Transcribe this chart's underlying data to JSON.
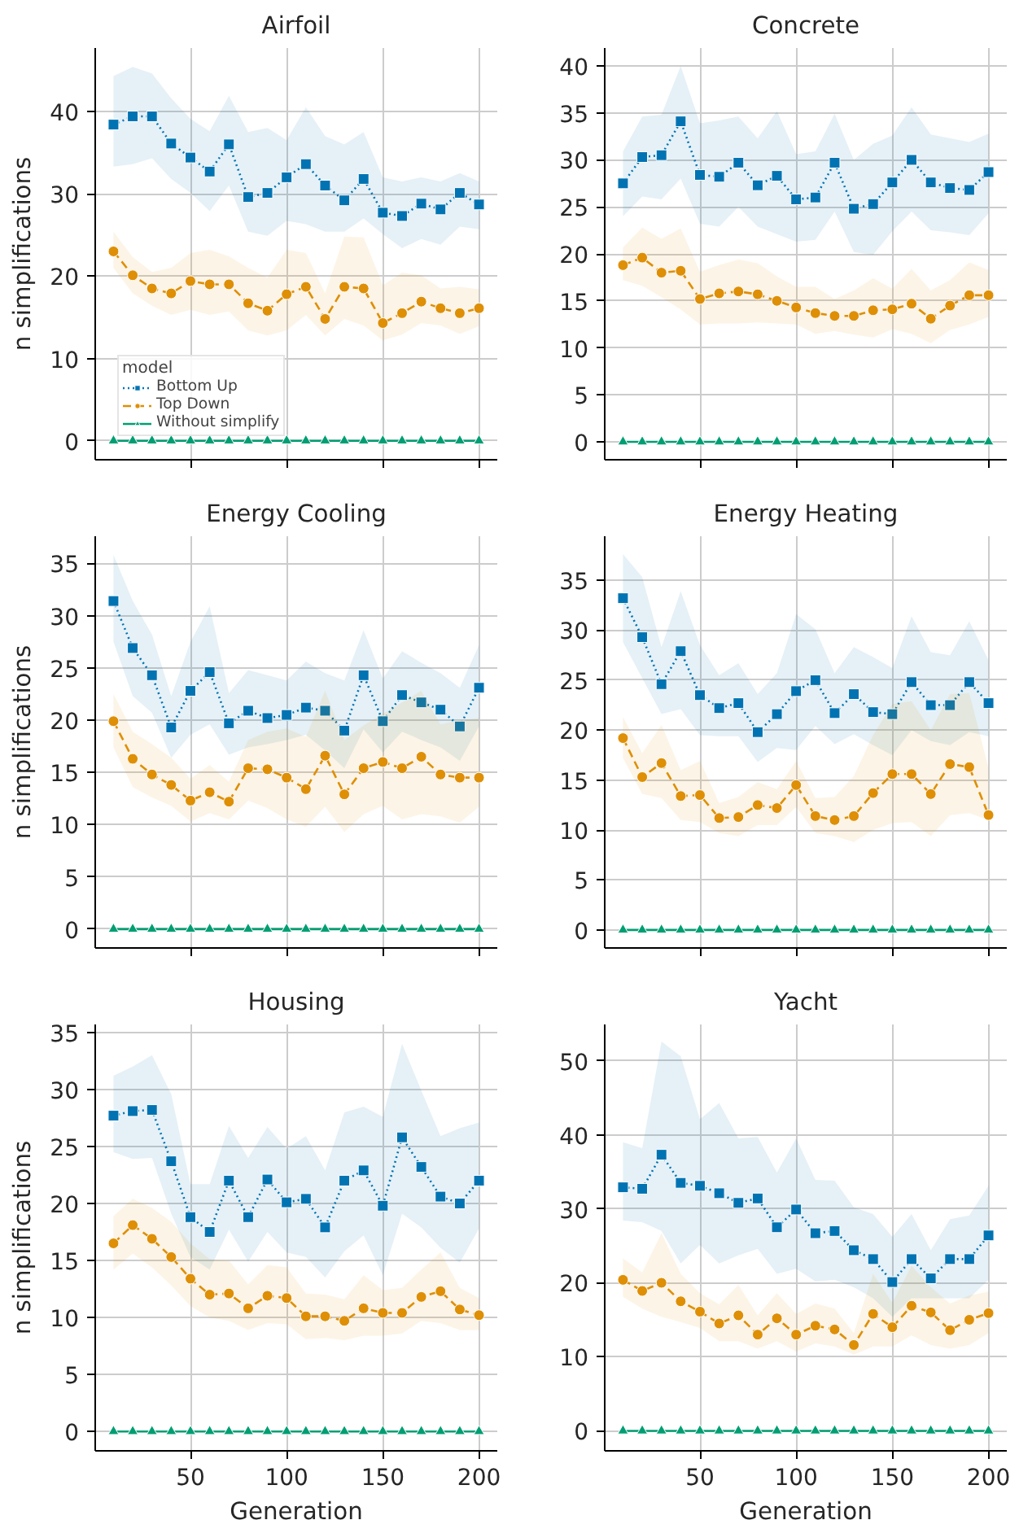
{
  "chart_data": [
    {
      "type": "line",
      "title": "Airfoil",
      "ylabel": "n simplifications",
      "x": [
        10,
        20,
        30,
        40,
        50,
        60,
        70,
        80,
        90,
        100,
        110,
        120,
        130,
        140,
        150,
        160,
        170,
        180,
        190,
        200
      ],
      "xlim": [
        0.5,
        209.5
      ],
      "xticks": [
        50,
        100,
        150,
        200
      ],
      "ylim": [
        -2.3,
        47.7
      ],
      "yticks": [
        0,
        10,
        20,
        30,
        40
      ],
      "grid": true,
      "tick_labels": "y",
      "legend": "bottom left",
      "legend_title": "model",
      "series": [
        {
          "name": "Bottom Up",
          "color": "#0173b2",
          "marker": "square",
          "line_style": "dotted",
          "values": [
            38.4,
            39.4,
            39.4,
            36.1,
            34.4,
            32.7,
            36.0,
            29.6,
            30.1,
            32.0,
            33.6,
            31.0,
            29.2,
            31.8,
            27.7,
            27.3,
            28.8,
            28.1,
            30.1,
            28.7
          ],
          "lower": [
            33.3,
            33.6,
            34.3,
            31.8,
            30.1,
            27.9,
            31.0,
            25.4,
            24.9,
            26.7,
            26.3,
            25.4,
            25.4,
            27.0,
            25.1,
            23.4,
            24.5,
            23.8,
            26.0,
            25.7
          ],
          "upper": [
            44.3,
            45.4,
            44.6,
            41.6,
            39.1,
            37.6,
            41.9,
            37.5,
            38.0,
            36.5,
            40.5,
            37.0,
            36.0,
            37.5,
            32.0,
            31.5,
            32.0,
            31.5,
            32.5,
            31.5
          ]
        },
        {
          "name": "Top Down",
          "color": "#de8f05",
          "marker": "circle",
          "line_style": "dashed",
          "values": [
            23.0,
            20.1,
            18.5,
            17.9,
            19.4,
            19.0,
            19.0,
            16.7,
            15.8,
            17.8,
            18.7,
            14.8,
            18.7,
            18.5,
            14.3,
            15.5,
            16.9,
            16.1,
            15.5,
            16.1
          ],
          "lower": [
            21.0,
            17.9,
            16.4,
            15.3,
            15.9,
            15.3,
            15.7,
            13.4,
            12.8,
            13.4,
            15.3,
            12.8,
            14.8,
            14.0,
            12.2,
            12.9,
            14.3,
            14.0,
            13.0,
            13.9
          ],
          "upper": [
            25.4,
            22.3,
            20.5,
            21.0,
            22.8,
            23.2,
            22.4,
            21.0,
            19.8,
            23.2,
            22.8,
            17.9,
            24.8,
            24.7,
            18.9,
            20.4,
            20.1,
            18.5,
            18.7,
            18.4
          ]
        },
        {
          "name": "Without simplify",
          "color": "#029e73",
          "marker": "triangle",
          "line_style": "solid",
          "values": [
            0,
            0,
            0,
            0,
            0,
            0,
            0,
            0,
            0,
            0,
            0,
            0,
            0,
            0,
            0,
            0,
            0,
            0,
            0,
            0
          ]
        }
      ]
    },
    {
      "type": "line",
      "title": "Concrete",
      "x": [
        10,
        20,
        30,
        40,
        50,
        60,
        70,
        80,
        90,
        100,
        110,
        120,
        130,
        140,
        150,
        160,
        170,
        180,
        190,
        200
      ],
      "xlim": [
        0.5,
        209.5
      ],
      "xticks": [
        50,
        100,
        150,
        200
      ],
      "ylim": [
        -1.9,
        41.9
      ],
      "yticks": [
        0,
        5,
        10,
        15,
        20,
        25,
        30,
        35,
        40
      ],
      "grid": true,
      "tick_labels": "y",
      "series": [
        {
          "color": "#0173b2",
          "marker": "square",
          "line_style": "dotted",
          "values": [
            27.5,
            30.3,
            30.5,
            34.1,
            28.4,
            28.2,
            29.7,
            27.3,
            28.3,
            25.8,
            26.0,
            29.7,
            24.8,
            25.3,
            27.6,
            30.0,
            27.6,
            27.0,
            26.8,
            28.7
          ],
          "lower": [
            24.0,
            26.1,
            25.8,
            28.0,
            23.2,
            22.9,
            25.0,
            22.9,
            22.1,
            21.3,
            21.5,
            24.5,
            20.2,
            19.9,
            22.4,
            24.5,
            22.5,
            22.3,
            22.0,
            24.3
          ],
          "upper": [
            30.9,
            34.6,
            34.8,
            40.0,
            33.9,
            34.2,
            34.6,
            32.3,
            35.2,
            30.6,
            30.9,
            34.9,
            30.0,
            31.7,
            32.6,
            35.6,
            32.7,
            32.3,
            31.9,
            32.8
          ]
        },
        {
          "color": "#de8f05",
          "marker": "circle",
          "line_style": "dashed",
          "values": [
            18.8,
            19.6,
            18.0,
            18.2,
            15.2,
            15.8,
            16.0,
            15.7,
            15.0,
            14.3,
            13.7,
            13.4,
            13.4,
            14.0,
            14.1,
            14.7,
            13.1,
            14.5,
            15.6,
            15.6
          ],
          "lower": [
            17.2,
            16.6,
            15.4,
            14.1,
            12.5,
            12.6,
            12.6,
            12.7,
            12.6,
            12.5,
            11.5,
            11.8,
            11.4,
            11.1,
            12.0,
            11.5,
            10.5,
            11.9,
            12.5,
            13.3
          ],
          "upper": [
            20.7,
            22.8,
            21.6,
            22.7,
            18.1,
            18.8,
            19.4,
            19.0,
            17.6,
            16.5,
            16.5,
            15.2,
            16.1,
            17.4,
            16.3,
            18.4,
            16.1,
            17.2,
            19.1,
            18.3
          ]
        },
        {
          "color": "#029e73",
          "marker": "triangle",
          "line_style": "solid",
          "values": [
            0,
            0,
            0,
            0,
            0,
            0,
            0,
            0,
            0,
            0,
            0,
            0,
            0,
            0,
            0,
            0,
            0,
            0,
            0,
            0
          ]
        }
      ]
    },
    {
      "type": "line",
      "title": "Energy Cooling",
      "ylabel": "n simplifications",
      "x": [
        10,
        20,
        30,
        40,
        50,
        60,
        70,
        80,
        90,
        100,
        110,
        120,
        130,
        140,
        150,
        160,
        170,
        180,
        190,
        200
      ],
      "xlim": [
        0.5,
        209.5
      ],
      "xticks": [
        50,
        100,
        150,
        200
      ],
      "ylim": [
        -1.8,
        37.6
      ],
      "yticks": [
        0,
        5,
        10,
        15,
        20,
        25,
        30,
        35
      ],
      "grid": true,
      "tick_labels": "y",
      "series": [
        {
          "color": "#0173b2",
          "marker": "square",
          "line_style": "dotted",
          "values": [
            31.4,
            26.9,
            24.3,
            19.3,
            22.8,
            24.6,
            19.7,
            20.9,
            20.2,
            20.5,
            21.2,
            20.9,
            19.0,
            24.3,
            19.9,
            22.4,
            21.7,
            21.0,
            19.4,
            23.1
          ],
          "lower": [
            27.5,
            22.3,
            20.7,
            16.4,
            18.6,
            19.6,
            16.7,
            17.4,
            17.7,
            18.1,
            18.6,
            17.1,
            15.4,
            19.1,
            16.9,
            18.9,
            18.1,
            17.4,
            16.1,
            19.4
          ],
          "upper": [
            35.8,
            31.4,
            28.2,
            22.3,
            27.5,
            30.9,
            22.6,
            24.8,
            24.3,
            23.8,
            25.6,
            24.5,
            23.8,
            28.6,
            24.0,
            26.6,
            25.5,
            24.5,
            23.1,
            27.2
          ]
        },
        {
          "color": "#de8f05",
          "marker": "circle",
          "line_style": "dashed",
          "values": [
            19.9,
            16.3,
            14.8,
            13.8,
            12.3,
            13.1,
            12.2,
            15.4,
            15.3,
            14.5,
            13.4,
            16.6,
            12.9,
            15.4,
            16.0,
            15.4,
            16.5,
            14.8,
            14.5,
            14.5
          ],
          "lower": [
            17.4,
            13.6,
            12.6,
            11.8,
            10.3,
            11.1,
            10.5,
            12.3,
            11.6,
            10.5,
            9.8,
            11.7,
            9.3,
            11.0,
            11.8,
            10.5,
            11.0,
            10.8,
            10.2,
            11.7
          ],
          "upper": [
            22.5,
            18.9,
            17.7,
            16.4,
            14.4,
            15.7,
            14.1,
            18.1,
            18.9,
            19.2,
            18.4,
            22.8,
            18.1,
            19.5,
            20.6,
            21.7,
            22.8,
            19.6,
            20.0,
            20.2
          ]
        },
        {
          "color": "#029e73",
          "marker": "triangle",
          "line_style": "solid",
          "values": [
            0,
            0,
            0,
            0,
            0,
            0,
            0,
            0,
            0,
            0,
            0,
            0,
            0,
            0,
            0,
            0,
            0,
            0,
            0,
            0
          ]
        }
      ]
    },
    {
      "type": "line",
      "title": "Energy Heating",
      "x": [
        10,
        20,
        30,
        40,
        50,
        60,
        70,
        80,
        90,
        100,
        110,
        120,
        130,
        140,
        150,
        160,
        170,
        180,
        190,
        200
      ],
      "xlim": [
        0.5,
        209.5
      ],
      "xticks": [
        50,
        100,
        150,
        200
      ],
      "ylim": [
        -1.8,
        39.4
      ],
      "yticks": [
        0,
        5,
        10,
        15,
        20,
        25,
        30,
        35
      ],
      "grid": true,
      "tick_labels": "y",
      "series": [
        {
          "color": "#0173b2",
          "marker": "square",
          "line_style": "dotted",
          "values": [
            33.2,
            29.3,
            24.6,
            27.9,
            23.5,
            22.2,
            22.7,
            19.8,
            21.6,
            23.9,
            25.0,
            21.7,
            23.6,
            21.8,
            21.6,
            24.8,
            22.5,
            22.5,
            24.8,
            22.7
          ],
          "lower": [
            28.8,
            25.2,
            21.6,
            22.1,
            19.5,
            19.4,
            19.4,
            16.8,
            18.2,
            18.0,
            20.4,
            18.6,
            19.6,
            18.5,
            17.5,
            20.0,
            18.9,
            18.5,
            19.8,
            19.4
          ],
          "upper": [
            37.6,
            35.3,
            28.3,
            33.9,
            28.5,
            25.5,
            26.7,
            23.6,
            25.7,
            31.6,
            30.1,
            25.7,
            28.3,
            27.3,
            26.2,
            31.4,
            27.8,
            27.5,
            30.9,
            27.0
          ]
        },
        {
          "color": "#de8f05",
          "marker": "circle",
          "line_style": "dashed",
          "values": [
            19.2,
            15.3,
            16.7,
            13.4,
            13.5,
            11.2,
            11.3,
            12.5,
            12.2,
            14.5,
            11.4,
            11.0,
            11.4,
            13.7,
            15.6,
            15.6,
            13.6,
            16.6,
            16.3,
            11.5
          ],
          "lower": [
            17.2,
            13.6,
            13.2,
            11.0,
            10.8,
            9.7,
            9.4,
            10.5,
            10.5,
            12.3,
            9.7,
            9.4,
            8.8,
            10.0,
            10.7,
            10.8,
            9.4,
            11.5,
            11.7,
            11.0
          ],
          "upper": [
            21.3,
            17.7,
            20.5,
            16.0,
            16.9,
            12.7,
            13.3,
            14.8,
            14.1,
            16.9,
            13.2,
            13.3,
            15.4,
            19.5,
            22.6,
            22.9,
            20.0,
            23.6,
            23.7,
            16.2
          ]
        },
        {
          "color": "#029e73",
          "marker": "triangle",
          "line_style": "solid",
          "values": [
            0,
            0,
            0,
            0,
            0,
            0,
            0,
            0,
            0,
            0,
            0,
            0,
            0,
            0,
            0,
            0,
            0,
            0,
            0,
            0
          ]
        }
      ]
    },
    {
      "type": "line",
      "title": "Housing",
      "xlabel": "Generation",
      "ylabel": "n simplifications",
      "x": [
        10,
        20,
        30,
        40,
        50,
        60,
        70,
        80,
        90,
        100,
        110,
        120,
        130,
        140,
        150,
        160,
        170,
        180,
        190,
        200
      ],
      "xlim": [
        0.5,
        209.5
      ],
      "xticks": [
        50,
        100,
        150,
        200
      ],
      "ylim": [
        -1.7,
        35.7
      ],
      "yticks": [
        0,
        5,
        10,
        15,
        20,
        25,
        30,
        35
      ],
      "grid": true,
      "series": [
        {
          "color": "#0173b2",
          "marker": "square",
          "line_style": "dotted",
          "values": [
            27.7,
            28.1,
            28.2,
            23.7,
            18.8,
            17.5,
            22.0,
            18.8,
            22.1,
            20.1,
            20.4,
            17.9,
            22.0,
            22.9,
            19.8,
            25.8,
            23.2,
            20.6,
            20.0,
            22.0
          ],
          "lower": [
            24.5,
            23.9,
            24.0,
            19.1,
            15.3,
            14.2,
            17.7,
            14.9,
            17.5,
            15.7,
            15.3,
            13.5,
            15.8,
            17.2,
            13.7,
            19.1,
            17.9,
            16.1,
            14.8,
            17.8
          ],
          "upper": [
            31.2,
            32.0,
            33.0,
            29.6,
            21.7,
            21.7,
            26.8,
            24.0,
            26.7,
            24.8,
            25.9,
            22.9,
            28.0,
            28.5,
            27.6,
            34.0,
            29.9,
            25.9,
            26.6,
            27.1
          ]
        },
        {
          "color": "#de8f05",
          "marker": "circle",
          "line_style": "dashed",
          "values": [
            16.5,
            18.1,
            16.9,
            15.3,
            13.4,
            12.0,
            12.1,
            10.8,
            11.9,
            11.7,
            10.1,
            10.1,
            9.7,
            10.8,
            10.4,
            10.4,
            11.8,
            12.3,
            10.7,
            10.2
          ],
          "lower": [
            14.2,
            15.6,
            14.4,
            12.8,
            11.0,
            10.0,
            9.7,
            8.9,
            9.5,
            9.4,
            8.1,
            8.2,
            8.0,
            8.4,
            8.4,
            8.6,
            9.7,
            9.5,
            8.9,
            8.9
          ],
          "upper": [
            18.9,
            20.4,
            19.6,
            18.4,
            16.5,
            15.1,
            15.0,
            12.9,
            14.6,
            14.4,
            12.1,
            12.0,
            11.6,
            13.7,
            12.4,
            12.6,
            14.2,
            15.7,
            12.6,
            11.7
          ]
        },
        {
          "color": "#029e73",
          "marker": "triangle",
          "line_style": "solid",
          "values": [
            0,
            0,
            0,
            0,
            0,
            0,
            0,
            0,
            0,
            0,
            0,
            0,
            0,
            0,
            0,
            0,
            0,
            0,
            0,
            0
          ]
        }
      ]
    },
    {
      "type": "line",
      "title": "Yacht",
      "xlabel": "Generation",
      "x": [
        10,
        20,
        30,
        40,
        50,
        60,
        70,
        80,
        90,
        100,
        110,
        120,
        130,
        140,
        150,
        160,
        170,
        180,
        190,
        200
      ],
      "xlim": [
        0.5,
        209.5
      ],
      "xticks": [
        50,
        100,
        150,
        200
      ],
      "ylim": [
        -2.7,
        54.9
      ],
      "yticks": [
        0,
        10,
        20,
        30,
        40,
        50
      ],
      "grid": true,
      "series": [
        {
          "color": "#0173b2",
          "marker": "square",
          "line_style": "dotted",
          "values": [
            32.9,
            32.7,
            37.3,
            33.5,
            33.1,
            32.1,
            30.8,
            31.4,
            27.5,
            29.9,
            26.7,
            27.0,
            24.4,
            23.2,
            20.1,
            23.2,
            20.6,
            23.2,
            23.2,
            26.4
          ],
          "lower": [
            28.4,
            28.2,
            27.0,
            22.6,
            25.1,
            22.6,
            23.7,
            24.6,
            21.2,
            21.9,
            20.2,
            20.4,
            19.4,
            17.9,
            15.4,
            17.9,
            17.9,
            17.9,
            17.9,
            20.4
          ],
          "upper": [
            39.0,
            38.2,
            52.6,
            50.6,
            42.1,
            44.3,
            39.5,
            39.7,
            34.9,
            39.5,
            33.9,
            33.8,
            30.2,
            29.3,
            26.2,
            29.3,
            24.4,
            28.6,
            29.1,
            33.1
          ]
        },
        {
          "color": "#de8f05",
          "marker": "circle",
          "line_style": "dashed",
          "values": [
            20.4,
            18.9,
            20.0,
            17.5,
            16.1,
            14.5,
            15.6,
            13.0,
            15.2,
            13.0,
            14.2,
            13.7,
            11.6,
            15.8,
            14.0,
            16.9,
            16.0,
            13.6,
            15.0,
            15.9
          ],
          "lower": [
            18.1,
            16.5,
            15.4,
            14.7,
            13.9,
            12.1,
            12.1,
            11.1,
            12.1,
            10.7,
            11.8,
            11.4,
            10.3,
            11.4,
            11.4,
            12.9,
            11.6,
            11.1,
            11.6,
            13.2
          ],
          "upper": [
            23.3,
            21.4,
            26.7,
            21.2,
            18.6,
            17.1,
            19.7,
            15.6,
            18.6,
            15.8,
            17.2,
            16.5,
            13.2,
            21.2,
            17.3,
            22.3,
            19.4,
            17.2,
            18.3,
            18.8
          ]
        },
        {
          "color": "#029e73",
          "marker": "triangle",
          "line_style": "solid",
          "values": [
            0,
            0,
            0,
            0,
            0,
            0,
            0,
            0,
            0,
            0,
            0,
            0,
            0,
            0,
            0,
            0,
            0,
            0,
            0,
            0
          ]
        }
      ]
    }
  ]
}
